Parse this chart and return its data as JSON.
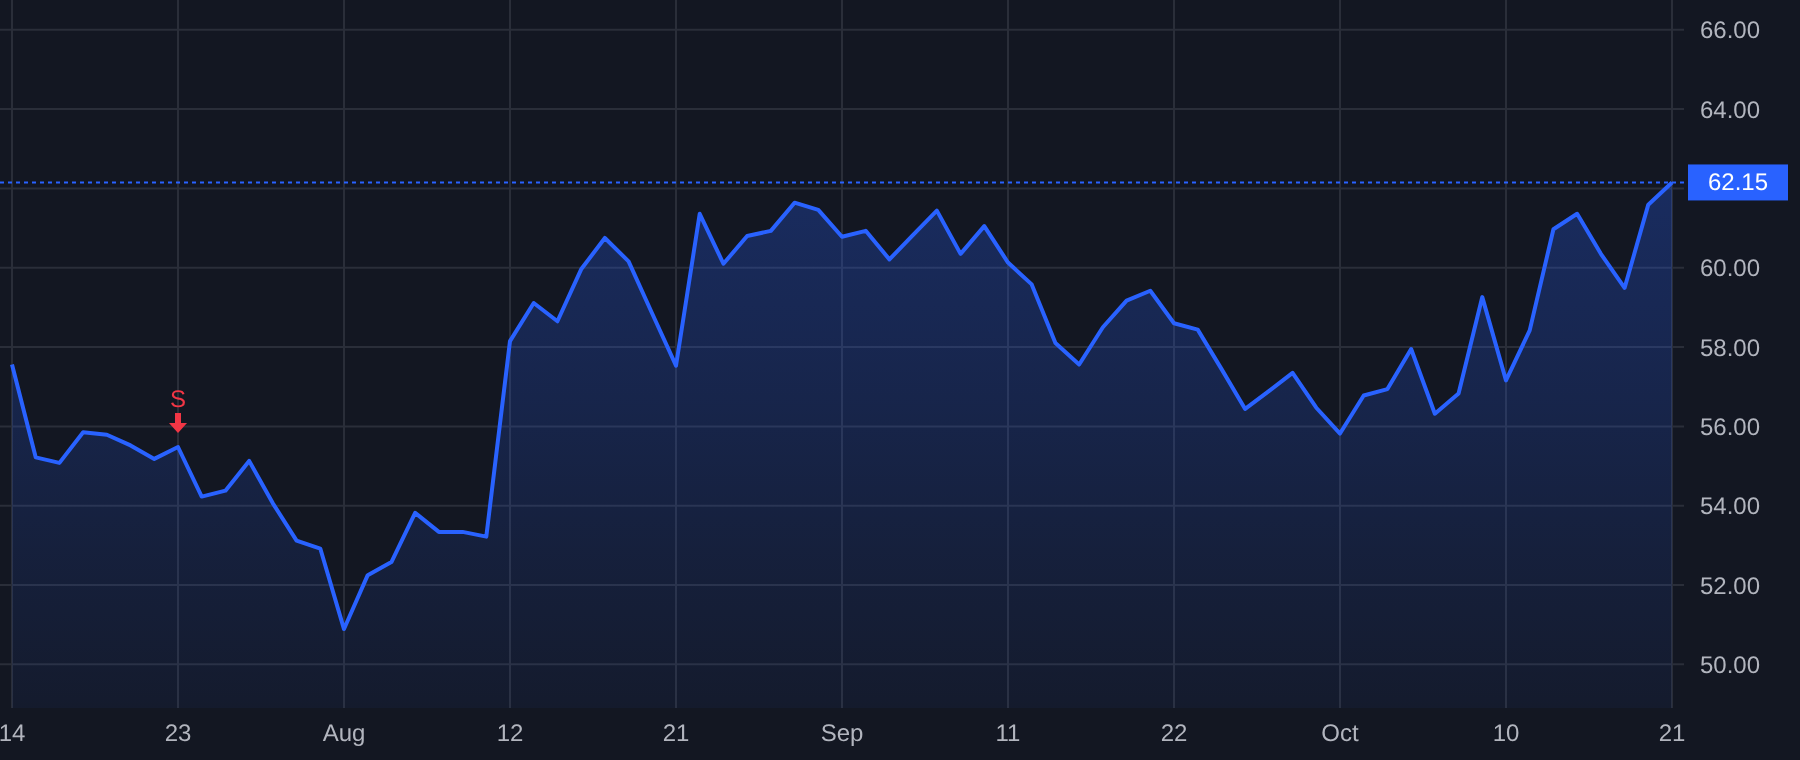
{
  "chart_data": {
    "type": "area",
    "categories": [
      "14",
      null,
      null,
      null,
      null,
      null,
      null,
      "23",
      null,
      null,
      null,
      null,
      null,
      null,
      "Aug",
      null,
      null,
      null,
      null,
      null,
      null,
      "12",
      null,
      null,
      null,
      null,
      null,
      null,
      "21",
      null,
      null,
      null,
      null,
      null,
      null,
      "Sep",
      null,
      null,
      null,
      null,
      null,
      null,
      "11",
      null,
      null,
      null,
      null,
      null,
      null,
      "22",
      null,
      null,
      null,
      null,
      null,
      null,
      "Oct",
      null,
      null,
      null,
      null,
      null,
      null,
      "10",
      null,
      null,
      null,
      null,
      null,
      null,
      "21"
    ],
    "series": [
      {
        "color": "#2962ff",
        "values": [
          57.56,
          55.22,
          55.08,
          55.85,
          55.79,
          55.52,
          55.18,
          55.48,
          54.23,
          54.38,
          55.13,
          54.06,
          53.12,
          52.92,
          50.89,
          52.25,
          52.58,
          53.82,
          53.34,
          53.34,
          53.22,
          58.15,
          59.11,
          58.65,
          59.96,
          60.75,
          60.16,
          58.84,
          57.53,
          61.36,
          60.1,
          60.8,
          60.93,
          61.64,
          61.46,
          60.78,
          60.93,
          60.21,
          60.83,
          61.44,
          60.35,
          61.05,
          60.13,
          59.58,
          58.1,
          57.56,
          58.5,
          59.17,
          59.42,
          58.6,
          58.44,
          57.45,
          56.44,
          56.89,
          57.35,
          56.47,
          55.82,
          56.78,
          56.94,
          57.95,
          56.32,
          56.83,
          59.26,
          57.16,
          58.42,
          60.97,
          61.36,
          60.35,
          59.49,
          61.59,
          62.15
        ]
      }
    ],
    "ylim": [
      48.9,
      66.75
    ],
    "yticks": [
      {
        "value": 50,
        "label": "50.00"
      },
      {
        "value": 52,
        "label": "52.00"
      },
      {
        "value": 54,
        "label": "54.00"
      },
      {
        "value": 56,
        "label": "56.00"
      },
      {
        "value": 58,
        "label": "58.00"
      },
      {
        "value": 60,
        "label": "60.00"
      },
      {
        "value": 62,
        "label": null
      },
      {
        "value": 64,
        "label": "64.00"
      },
      {
        "value": 66,
        "label": "66.00"
      }
    ],
    "ref_lines": [
      {
        "axis": "y",
        "value": 62.15,
        "label": "62.15",
        "color": "#2962ff",
        "line_style": "dotted"
      }
    ],
    "annotations": [
      {
        "text": "S",
        "x": "23",
        "y": 55.48
      }
    ],
    "grid": true,
    "legend": false
  }
}
